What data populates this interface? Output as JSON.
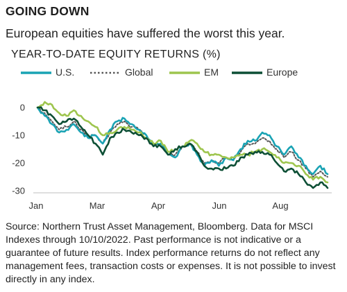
{
  "header": {
    "title": "GOING DOWN",
    "subtitle": "European equities have suffered the worst this year."
  },
  "source_note": "Source: Northern Trust Asset Management, Bloomberg. Data for MSCI Indexes through 10/10/2022. Past performance is not indicative or a guarantee of future results. Index performance returns do not reflect any management fees, transaction costs or expenses. It is not possible to invest directly in any index.",
  "chart_data": {
    "type": "line",
    "title": "YEAR-TO-DATE EQUITY RETURNS (%)",
    "xlabel": "",
    "ylabel": "",
    "x_ticks": [
      "Jan",
      "Mar",
      "Apr",
      "Jun",
      "Aug"
    ],
    "y_ticks": [
      0,
      -10,
      -20,
      -30
    ],
    "ylim": [
      -31,
      2
    ],
    "legend_position": "top",
    "grid": false,
    "series": [
      {
        "name": "U.S.",
        "color": "#1aa3b4",
        "dash": "solid",
        "x": [
          "2022-01-03",
          "2022-01-10",
          "2022-01-17",
          "2022-01-24",
          "2022-01-31",
          "2022-02-07",
          "2022-02-14",
          "2022-02-21",
          "2022-02-28",
          "2022-03-07",
          "2022-03-14",
          "2022-03-21",
          "2022-03-28",
          "2022-04-04",
          "2022-04-11",
          "2022-04-18",
          "2022-04-25",
          "2022-05-02",
          "2022-05-09",
          "2022-05-16",
          "2022-05-23",
          "2022-05-30",
          "2022-06-06",
          "2022-06-13",
          "2022-06-20",
          "2022-06-27",
          "2022-07-04",
          "2022-07-11",
          "2022-07-18",
          "2022-07-25",
          "2022-08-01",
          "2022-08-08",
          "2022-08-15",
          "2022-08-22",
          "2022-08-29",
          "2022-09-05",
          "2022-09-12",
          "2022-09-19",
          "2022-09-26",
          "2022-10-03",
          "2022-10-10"
        ],
        "values": [
          0,
          -3,
          -6,
          -9,
          -8,
          -6,
          -9,
          -11,
          -10,
          -13,
          -8,
          -5,
          -4,
          -6,
          -8,
          -10,
          -13,
          -13,
          -17,
          -18,
          -14,
          -13,
          -17,
          -21,
          -19,
          -21,
          -18,
          -19,
          -15,
          -12,
          -12,
          -9,
          -10,
          -14,
          -17,
          -14,
          -18,
          -21,
          -24,
          -21,
          -24
        ]
      },
      {
        "name": "Global",
        "color": "#555555",
        "dash": "dotted",
        "x": [
          "2022-01-03",
          "2022-01-10",
          "2022-01-17",
          "2022-01-24",
          "2022-01-31",
          "2022-02-07",
          "2022-02-14",
          "2022-02-21",
          "2022-02-28",
          "2022-03-07",
          "2022-03-14",
          "2022-03-21",
          "2022-03-28",
          "2022-04-04",
          "2022-04-11",
          "2022-04-18",
          "2022-04-25",
          "2022-05-02",
          "2022-05-09",
          "2022-05-16",
          "2022-05-23",
          "2022-05-30",
          "2022-06-06",
          "2022-06-13",
          "2022-06-20",
          "2022-06-27",
          "2022-07-04",
          "2022-07-11",
          "2022-07-18",
          "2022-07-25",
          "2022-08-01",
          "2022-08-08",
          "2022-08-15",
          "2022-08-22",
          "2022-08-29",
          "2022-09-05",
          "2022-09-12",
          "2022-09-19",
          "2022-09-26",
          "2022-10-03",
          "2022-10-10"
        ],
        "values": [
          0,
          -2,
          -5,
          -8,
          -7,
          -5,
          -8,
          -10,
          -10,
          -13,
          -9,
          -6,
          -5,
          -7,
          -8,
          -10,
          -13,
          -13,
          -17,
          -17,
          -14,
          -13,
          -16,
          -20,
          -19,
          -20,
          -18,
          -19,
          -16,
          -13,
          -13,
          -11,
          -12,
          -15,
          -18,
          -16,
          -19,
          -22,
          -25,
          -23,
          -25
        ]
      },
      {
        "name": "EM",
        "color": "#9ec54e",
        "dash": "solid",
        "x": [
          "2022-01-03",
          "2022-01-10",
          "2022-01-17",
          "2022-01-24",
          "2022-01-31",
          "2022-02-07",
          "2022-02-14",
          "2022-02-21",
          "2022-02-28",
          "2022-03-07",
          "2022-03-14",
          "2022-03-21",
          "2022-03-28",
          "2022-04-04",
          "2022-04-11",
          "2022-04-18",
          "2022-04-25",
          "2022-05-02",
          "2022-05-09",
          "2022-05-16",
          "2022-05-23",
          "2022-05-30",
          "2022-06-06",
          "2022-06-13",
          "2022-06-20",
          "2022-06-27",
          "2022-07-04",
          "2022-07-11",
          "2022-07-18",
          "2022-07-25",
          "2022-08-01",
          "2022-08-08",
          "2022-08-15",
          "2022-08-22",
          "2022-08-29",
          "2022-09-05",
          "2022-09-12",
          "2022-09-19",
          "2022-09-26",
          "2022-10-03",
          "2022-10-10"
        ],
        "values": [
          0,
          2,
          1,
          -2,
          -3,
          -1,
          -3,
          -5,
          -7,
          -10,
          -9,
          -8,
          -7,
          -8,
          -9,
          -11,
          -13,
          -12,
          -16,
          -15,
          -14,
          -12,
          -13,
          -16,
          -17,
          -17,
          -18,
          -18,
          -17,
          -17,
          -16,
          -15,
          -16,
          -18,
          -20,
          -20,
          -21,
          -24,
          -26,
          -25,
          -27
        ]
      },
      {
        "name": "Europe",
        "color": "#0d4f35",
        "dash": "solid",
        "x": [
          "2022-01-03",
          "2022-01-10",
          "2022-01-17",
          "2022-01-24",
          "2022-01-31",
          "2022-02-07",
          "2022-02-14",
          "2022-02-21",
          "2022-02-28",
          "2022-03-07",
          "2022-03-14",
          "2022-03-21",
          "2022-03-28",
          "2022-04-04",
          "2022-04-11",
          "2022-04-18",
          "2022-04-25",
          "2022-05-02",
          "2022-05-09",
          "2022-05-16",
          "2022-05-23",
          "2022-05-30",
          "2022-06-06",
          "2022-06-13",
          "2022-06-20",
          "2022-06-27",
          "2022-07-04",
          "2022-07-11",
          "2022-07-18",
          "2022-07-25",
          "2022-08-01",
          "2022-08-08",
          "2022-08-15",
          "2022-08-22",
          "2022-08-29",
          "2022-09-05",
          "2022-09-12",
          "2022-09-19",
          "2022-09-26",
          "2022-10-03",
          "2022-10-10"
        ],
        "values": [
          0,
          -1,
          -3,
          -6,
          -5,
          -4,
          -7,
          -10,
          -13,
          -17,
          -11,
          -9,
          -8,
          -9,
          -10,
          -11,
          -14,
          -14,
          -17,
          -15,
          -14,
          -13,
          -16,
          -21,
          -22,
          -22,
          -22,
          -21,
          -18,
          -17,
          -16,
          -16,
          -17,
          -20,
          -23,
          -22,
          -24,
          -27,
          -29,
          -27,
          -29
        ]
      }
    ]
  }
}
